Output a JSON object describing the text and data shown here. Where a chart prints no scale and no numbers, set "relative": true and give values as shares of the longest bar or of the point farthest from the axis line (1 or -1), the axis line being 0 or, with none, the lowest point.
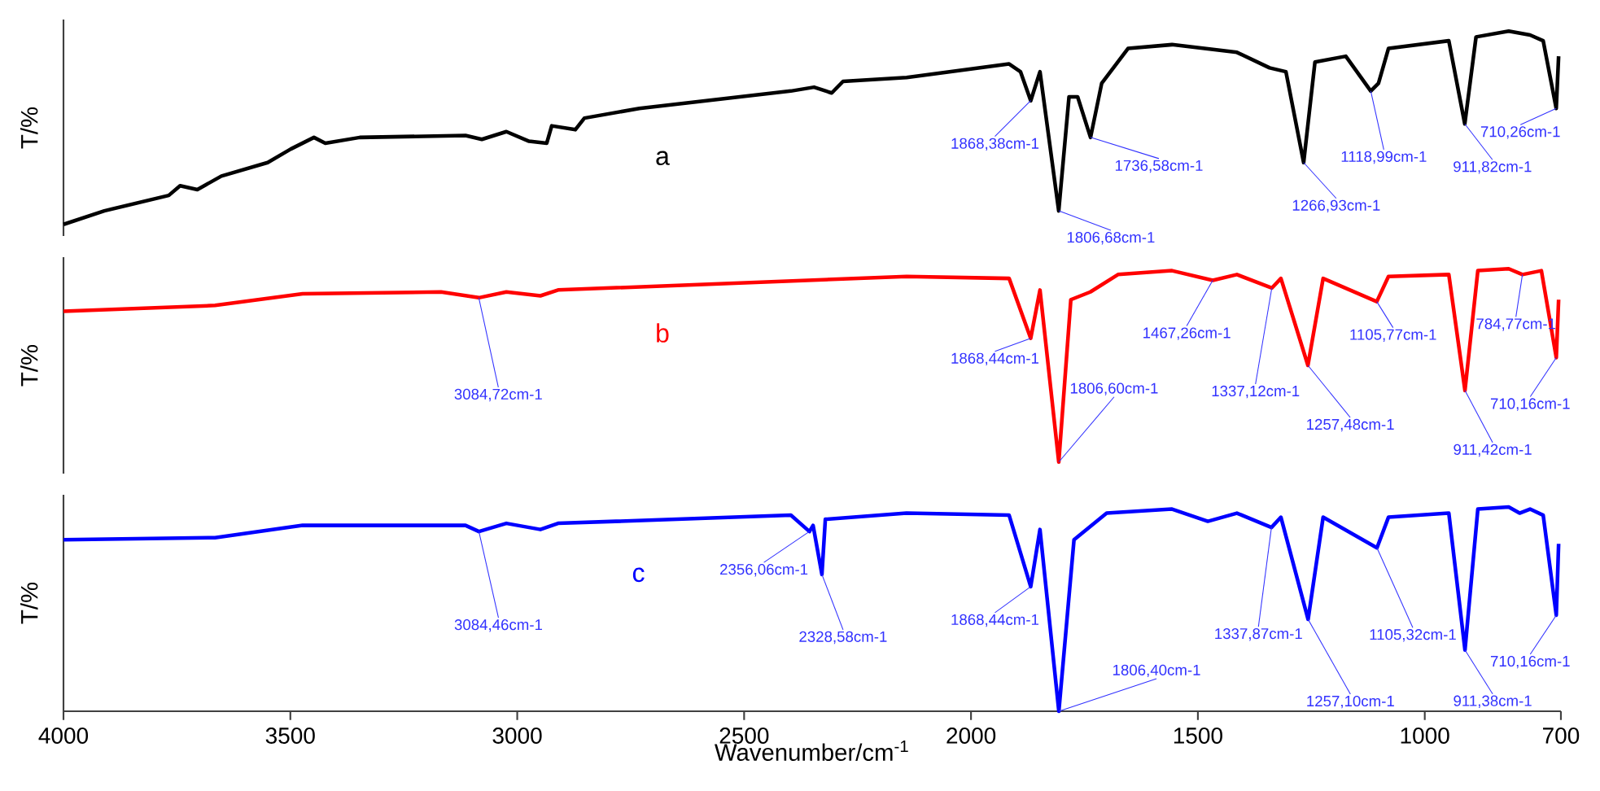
{
  "chart_data": [
    {
      "type": "line",
      "relative": true,
      "ylabel": "T/%",
      "xlim": [
        4000,
        700
      ],
      "tick_labels": false,
      "series": [
        {
          "name": "a",
          "color": "#000000",
          "x": [
            4000,
            3910,
            3768,
            3743,
            3705,
            3652,
            3550,
            3499,
            3448,
            3423,
            3347,
            3114,
            3078,
            3024,
            2974,
            2935,
            2924,
            2872,
            2852,
            2731,
            2397,
            2346,
            2307,
            2282,
            2142,
            1916,
            1891,
            1868.38,
            1848,
            1806.68,
            1784,
            1765,
            1736.58,
            1712,
            1654,
            1557,
            1414,
            1342,
            1306,
            1266.93,
            1242,
            1174,
            1118.99,
            1102,
            1080,
            947,
            911.82,
            887,
            815,
            768,
            739,
            710.26,
            705
          ],
          "values": [
            0,
            0.07,
            0.15,
            0.2,
            0.18,
            0.25,
            0.32,
            0.39,
            0.45,
            0.42,
            0.45,
            0.46,
            0.44,
            0.48,
            0.43,
            0.42,
            0.51,
            0.49,
            0.55,
            0.6,
            0.69,
            0.71,
            0.68,
            0.74,
            0.76,
            0.83,
            0.79,
            0.64,
            0.79,
            0.07,
            0.66,
            0.66,
            0.45,
            0.73,
            0.91,
            0.93,
            0.89,
            0.81,
            0.79,
            0.32,
            0.84,
            0.87,
            0.69,
            0.73,
            0.91,
            0.95,
            0.52,
            0.97,
            1,
            0.98,
            0.95,
            0.6,
            0.87
          ]
        }
      ],
      "annotations": [
        {
          "text": "1868,38cm-1",
          "x": 1868.38,
          "y": 0.64
        },
        {
          "text": "1806,68cm-1",
          "x": 1806.68,
          "y": 0.07
        },
        {
          "text": "1736,58cm-1",
          "x": 1736.58,
          "y": 0.45
        },
        {
          "text": "1266,93cm-1",
          "x": 1266.93,
          "y": 0.32
        },
        {
          "text": "1118,99cm-1",
          "x": 1118.99,
          "y": 0.69
        },
        {
          "text": "911,82cm-1",
          "x": 911.82,
          "y": 0.52
        },
        {
          "text": "710,26cm-1",
          "x": 710.26,
          "y": 0.6
        }
      ]
    },
    {
      "type": "line",
      "relative": true,
      "ylabel": "T/%",
      "xlim": [
        4000,
        700
      ],
      "tick_labels": false,
      "series": [
        {
          "name": "b",
          "color": "#ff0000",
          "x": [
            4000,
            3666,
            3473,
            3168,
            3084.72,
            3024,
            2949,
            2910,
            2142,
            1916,
            1868.44,
            1848,
            1806.6,
            1780,
            1737,
            1676,
            1557,
            1467.26,
            1414,
            1337.12,
            1317,
            1257.48,
            1224,
            1105.77,
            1080,
            947,
            911.42,
            883,
            815,
            784.77,
            743,
            710.16,
            705
          ],
          "values": [
            0.78,
            0.81,
            0.87,
            0.88,
            0.85,
            0.88,
            0.86,
            0.89,
            0.96,
            0.95,
            0.64,
            0.89,
            0,
            0.84,
            0.88,
            0.97,
            0.99,
            0.94,
            0.97,
            0.9,
            0.95,
            0.5,
            0.95,
            0.83,
            0.96,
            0.97,
            0.37,
            0.99,
            1,
            0.97,
            0.99,
            0.54,
            0.84
          ]
        }
      ],
      "annotations": [
        {
          "text": "3084,72cm-1",
          "x": 3084.72,
          "y": 0.85
        },
        {
          "text": "1868,44cm-1",
          "x": 1868.44,
          "y": 0.64
        },
        {
          "text": "1806,60cm-1",
          "x": 1806.6,
          "y": 0
        },
        {
          "text": "1467,26cm-1",
          "x": 1467.26,
          "y": 0.94
        },
        {
          "text": "1337,12cm-1",
          "x": 1337.12,
          "y": 0.9
        },
        {
          "text": "1257,48cm-1",
          "x": 1257.48,
          "y": 0.5
        },
        {
          "text": "1105,77cm-1",
          "x": 1105.77,
          "y": 0.83
        },
        {
          "text": "911,42cm-1",
          "x": 911.42,
          "y": 0.37
        },
        {
          "text": "784,77cm-1",
          "x": 784.77,
          "y": 0.97
        },
        {
          "text": "710,16cm-1",
          "x": 710.16,
          "y": 0.54
        }
      ]
    },
    {
      "type": "line",
      "relative": true,
      "ylabel": "T/%",
      "xlabel": "Wavenumber/cm$^{-1}$",
      "xlim": [
        4000,
        700
      ],
      "xticks": [
        4000,
        3500,
        3000,
        2500,
        2000,
        1500,
        1000,
        700
      ],
      "tick_labels": "x",
      "series": [
        {
          "name": "c",
          "color": "#0000ff",
          "x": [
            4000,
            3666,
            3473,
            3114,
            3084.46,
            3024,
            2949,
            2910,
            2397,
            2356.06,
            2348,
            2328.58,
            2321,
            2142,
            1916,
            1868.44,
            1848,
            1806.4,
            1773,
            1701,
            1557,
            1478,
            1414,
            1337.87,
            1317,
            1257.1,
            1224,
            1105.32,
            1080,
            947,
            911.38,
            883,
            815,
            791,
            768,
            739,
            710.16,
            705
          ],
          "values": [
            0.84,
            0.85,
            0.91,
            0.91,
            0.88,
            0.92,
            0.89,
            0.92,
            0.96,
            0.88,
            0.91,
            0.67,
            0.94,
            0.97,
            0.96,
            0.61,
            0.89,
            0,
            0.84,
            0.97,
            0.99,
            0.93,
            0.97,
            0.9,
            0.95,
            0.45,
            0.95,
            0.8,
            0.95,
            0.97,
            0.3,
            0.99,
            1,
            0.97,
            0.99,
            0.96,
            0.47,
            0.82
          ]
        }
      ],
      "annotations": [
        {
          "text": "3084,46cm-1",
          "x": 3084.46,
          "y": 0.88
        },
        {
          "text": "2356,06cm-1",
          "x": 2356.06,
          "y": 0.88
        },
        {
          "text": "2328,58cm-1",
          "x": 2328.58,
          "y": 0.67
        },
        {
          "text": "1868,44cm-1",
          "x": 1868.44,
          "y": 0.61
        },
        {
          "text": "1806,40cm-1",
          "x": 1806.4,
          "y": 0
        },
        {
          "text": "1337,87cm-1",
          "x": 1337.87,
          "y": 0.9
        },
        {
          "text": "1257,10cm-1",
          "x": 1257.1,
          "y": 0.45
        },
        {
          "text": "1105,32cm-1",
          "x": 1105.32,
          "y": 0.8
        },
        {
          "text": "911,38cm-1",
          "x": 911.38,
          "y": 0.3
        },
        {
          "text": "710,16cm-1",
          "x": 710.16,
          "y": 0.47
        }
      ]
    }
  ]
}
